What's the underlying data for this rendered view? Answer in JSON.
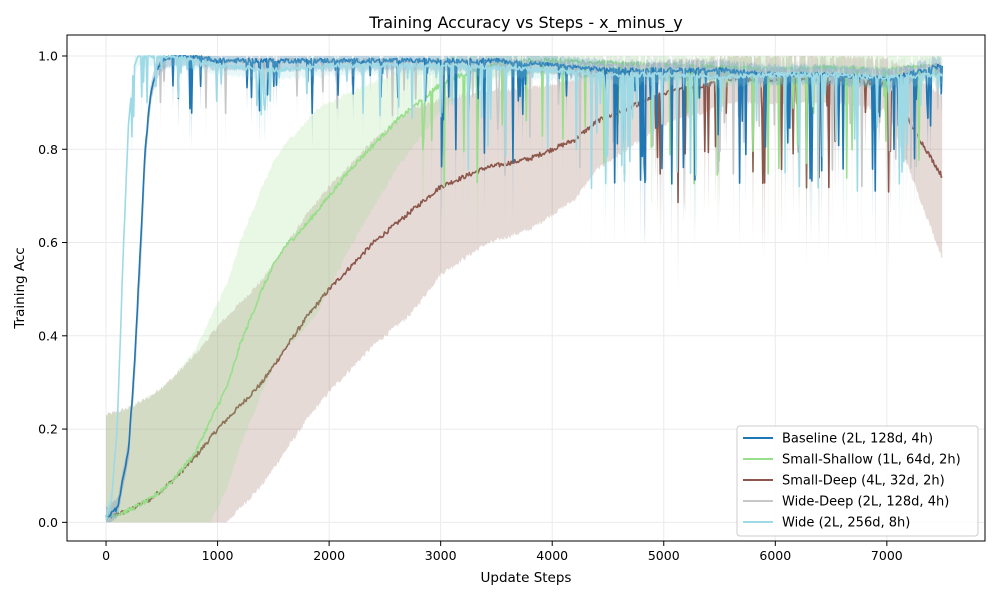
{
  "chart_data": {
    "type": "line",
    "title": "Training Accuracy vs Steps - x_minus_y",
    "xlabel": "Update Steps",
    "ylabel": "Training Acc",
    "xlim": [
      -350,
      7880
    ],
    "ylim": [
      -0.04,
      1.045
    ],
    "xticks": [
      0,
      1000,
      2000,
      3000,
      4000,
      5000,
      6000,
      7000
    ],
    "yticks": [
      0.0,
      0.2,
      0.4,
      0.6,
      0.8,
      1.0
    ],
    "grid": true,
    "legend_position": "lower-right",
    "series": [
      {
        "name": "Baseline (2L, 128d, 4h)",
        "color": "#1f77b4",
        "x": [
          0,
          100,
          200,
          250,
          300,
          350,
          400,
          450,
          500,
          550,
          600,
          800,
          1000,
          1500,
          2000,
          2500,
          3000,
          3500,
          4000,
          4500,
          5000,
          5500,
          6000,
          6500,
          7000,
          7500
        ],
        "y": [
          0.01,
          0.03,
          0.15,
          0.32,
          0.55,
          0.8,
          0.92,
          0.97,
          0.99,
          0.995,
          1.0,
          1.0,
          0.99,
          0.99,
          0.99,
          0.99,
          0.99,
          0.99,
          0.98,
          0.97,
          0.97,
          0.97,
          0.96,
          0.96,
          0.95,
          0.98
        ]
      },
      {
        "name": "Small-Shallow (1L, 64d, 2h)",
        "color": "#98df8a",
        "x": [
          0,
          200,
          400,
          600,
          800,
          900,
          1000,
          1100,
          1200,
          1300,
          1400,
          1500,
          1600,
          1800,
          2000,
          2200,
          2400,
          2600,
          2800,
          3000,
          3200,
          3400,
          3600,
          3800,
          4000,
          4500,
          5000,
          5500,
          6000,
          6500,
          7000,
          7500
        ],
        "y": [
          0.01,
          0.025,
          0.05,
          0.09,
          0.15,
          0.2,
          0.25,
          0.3,
          0.38,
          0.44,
          0.5,
          0.55,
          0.59,
          0.64,
          0.7,
          0.76,
          0.81,
          0.86,
          0.9,
          0.94,
          0.96,
          0.98,
          0.985,
          0.99,
          0.99,
          0.985,
          0.98,
          0.975,
          0.97,
          0.975,
          0.97,
          0.98
        ]
      },
      {
        "name": "Small-Deep (4L, 32d, 2h)",
        "color": "#8c564b",
        "x": [
          0,
          200,
          400,
          600,
          800,
          1000,
          1200,
          1400,
          1600,
          1800,
          2000,
          2200,
          2400,
          2600,
          2800,
          3000,
          3200,
          3400,
          3600,
          3800,
          4000,
          4200,
          4400,
          4600,
          4800,
          5000,
          5200,
          5400,
          5600,
          5800,
          6000,
          6500,
          7000,
          7500
        ],
        "y": [
          0.01,
          0.025,
          0.05,
          0.09,
          0.14,
          0.2,
          0.25,
          0.3,
          0.37,
          0.44,
          0.5,
          0.55,
          0.6,
          0.64,
          0.68,
          0.72,
          0.74,
          0.76,
          0.77,
          0.78,
          0.8,
          0.82,
          0.86,
          0.88,
          0.9,
          0.92,
          0.93,
          0.94,
          0.95,
          0.95,
          0.95,
          0.95,
          0.94,
          0.74
        ]
      },
      {
        "name": "Wide-Deep (2L, 128d, 4h)",
        "color": "#c7c7c7",
        "x": [
          0,
          100,
          200,
          250,
          300,
          350,
          400,
          450,
          500,
          550,
          600,
          800,
          1000,
          1500,
          2000,
          2500,
          3000,
          3500,
          4000,
          4500,
          5000,
          5500,
          6000,
          6500,
          7000,
          7500
        ],
        "y": [
          0.01,
          0.03,
          0.14,
          0.3,
          0.52,
          0.78,
          0.91,
          0.97,
          0.99,
          0.995,
          1.0,
          1.0,
          0.99,
          0.99,
          0.99,
          0.99,
          0.99,
          0.99,
          0.985,
          0.98,
          0.98,
          0.97,
          0.97,
          0.97,
          0.97,
          0.98
        ]
      },
      {
        "name": "Wide (2L, 256d, 8h)",
        "color": "#9edae5",
        "x": [
          0,
          50,
          100,
          150,
          200,
          250,
          300,
          400,
          500,
          600,
          800,
          1000,
          1500,
          2000,
          2500,
          3000,
          3500,
          4000,
          4500,
          5000,
          5500,
          6000,
          6500,
          7000,
          7500
        ],
        "y": [
          0.01,
          0.05,
          0.2,
          0.55,
          0.85,
          0.98,
          1.0,
          1.0,
          1.0,
          1.0,
          0.99,
          0.98,
          0.97,
          0.98,
          0.98,
          0.98,
          0.975,
          0.97,
          0.96,
          0.96,
          0.955,
          0.96,
          0.96,
          0.955,
          0.96
        ]
      }
    ]
  }
}
